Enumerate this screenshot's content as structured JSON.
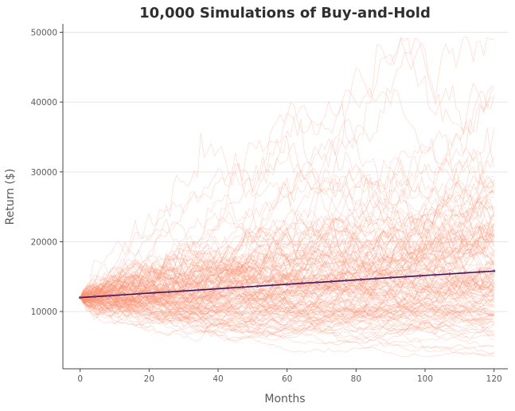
{
  "chart_data": {
    "type": "line",
    "title": "10,000 Simulations of Buy-and-Hold",
    "xlabel": "Months",
    "ylabel": "Return ($)",
    "xlim": [
      -5,
      124
    ],
    "ylim": [
      1800,
      51200
    ],
    "x_ticks": [
      "0",
      "20",
      "40",
      "60",
      "80",
      "100",
      "120"
    ],
    "y_ticks": [
      "10000",
      "20000",
      "30000",
      "40000",
      "50000"
    ],
    "grid": "horizontal",
    "legend": "none",
    "months": 120,
    "start_value": 12000,
    "colors": {
      "simulations": "#fc9272",
      "mean_line": "#3d1450",
      "mean_markers": "#7a3a86",
      "axes": "#444444",
      "grid": "#e6e6e6"
    },
    "series": [
      {
        "values": [
          12000,
          12136,
          12271,
          12407,
          12543,
          12679,
          12814,
          12950,
          13086,
          13221,
          13357,
          13493,
          13629,
          13764,
          13900,
          14036,
          14171,
          14307,
          14443,
          14579,
          14714,
          14850,
          14986,
          15121,
          15257,
          15393,
          15529,
          15664,
          15800
        ]
      }
    ]
  }
}
